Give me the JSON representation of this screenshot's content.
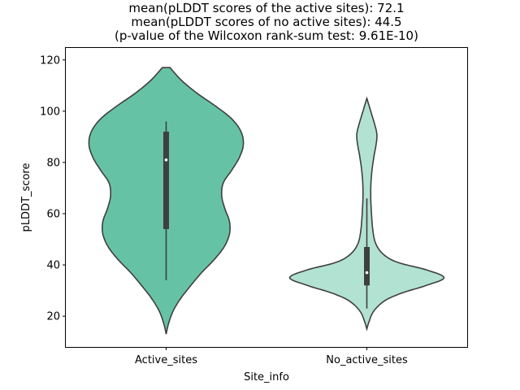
{
  "chart_data": {
    "type": "violin",
    "title_lines": [
      "mean(pLDDT scores of the active sites): 72.1",
      "mean(pLDDT scores of no active sites): 44.5",
      "(p-value of the Wilcoxon rank-sum test: 9.61E-10)"
    ],
    "xlabel": "Site_info",
    "ylabel": "pLDDT_score",
    "ylim": [
      8,
      125
    ],
    "yticks": [
      20,
      40,
      60,
      80,
      100,
      120
    ],
    "categories": [
      "Active_sites",
      "No_active_sites"
    ],
    "series": [
      {
        "category": "Active_sites",
        "color": "#66c2a5",
        "min": 34,
        "q1": 54,
        "median": 81,
        "q3": 92,
        "max": 96,
        "density": [
          [
            13,
            0.0
          ],
          [
            17,
            0.03
          ],
          [
            22,
            0.09
          ],
          [
            27,
            0.19
          ],
          [
            32,
            0.32
          ],
          [
            37,
            0.46
          ],
          [
            42,
            0.62
          ],
          [
            47,
            0.75
          ],
          [
            52,
            0.82
          ],
          [
            57,
            0.82
          ],
          [
            62,
            0.76
          ],
          [
            67,
            0.72
          ],
          [
            72,
            0.74
          ],
          [
            77,
            0.85
          ],
          [
            82,
            0.95
          ],
          [
            87,
            1.0
          ],
          [
            92,
            0.97
          ],
          [
            97,
            0.85
          ],
          [
            102,
            0.64
          ],
          [
            107,
            0.4
          ],
          [
            112,
            0.2
          ],
          [
            117,
            0.05
          ]
        ]
      },
      {
        "category": "No_active_sites",
        "color": "#b2e2d2",
        "min": 23,
        "q1": 32,
        "median": 37,
        "q3": 47,
        "max": 66,
        "density": [
          [
            15,
            0.0
          ],
          [
            18,
            0.03
          ],
          [
            22,
            0.09
          ],
          [
            26,
            0.23
          ],
          [
            29,
            0.45
          ],
          [
            32,
            0.77
          ],
          [
            35,
            1.0
          ],
          [
            38,
            0.78
          ],
          [
            41,
            0.4
          ],
          [
            44,
            0.22
          ],
          [
            48,
            0.12
          ],
          [
            53,
            0.08
          ],
          [
            60,
            0.06
          ],
          [
            68,
            0.05
          ],
          [
            75,
            0.06
          ],
          [
            82,
            0.09
          ],
          [
            87,
            0.12
          ],
          [
            91,
            0.13
          ],
          [
            95,
            0.1
          ],
          [
            100,
            0.05
          ],
          [
            105,
            0.0
          ]
        ]
      }
    ]
  }
}
